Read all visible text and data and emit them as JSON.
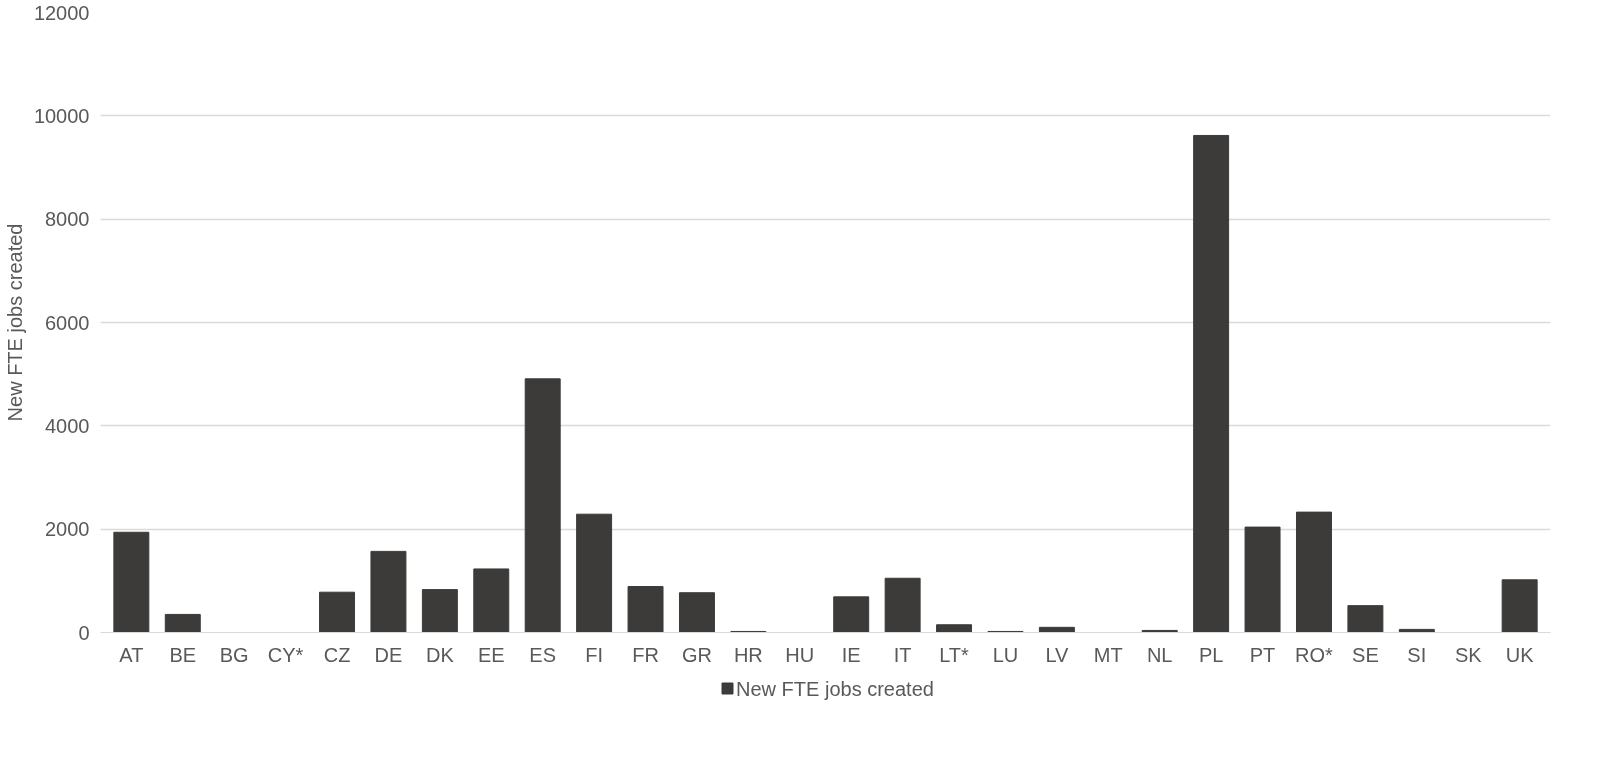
{
  "chart_data": {
    "type": "bar",
    "ylabel": "New FTE jobs created",
    "categories": [
      "AT",
      "BE",
      "BG",
      "CY*",
      "CZ",
      "DE",
      "DK",
      "EE",
      "ES",
      "FI",
      "FR",
      "GR",
      "HR",
      "HU",
      "IE",
      "IT",
      "LT*",
      "LU",
      "LV",
      "MT",
      "NL",
      "PL",
      "PT",
      "RO*",
      "SE",
      "SI",
      "SK",
      "UK"
    ],
    "series": [
      {
        "name": "New FTE jobs created",
        "color": "#3c3b39",
        "values": [
          1940,
          350,
          0,
          0,
          780,
          1570,
          830,
          1230,
          4910,
          2290,
          890,
          770,
          20,
          0,
          690,
          1050,
          150,
          20,
          100,
          0,
          40,
          9620,
          2040,
          2330,
          520,
          60,
          0,
          1020
        ]
      }
    ],
    "ylim": [
      0,
      12000
    ],
    "yticks": [
      0,
      2000,
      4000,
      6000,
      8000,
      10000,
      12000
    ],
    "grid": "y",
    "legend": "bottom"
  }
}
